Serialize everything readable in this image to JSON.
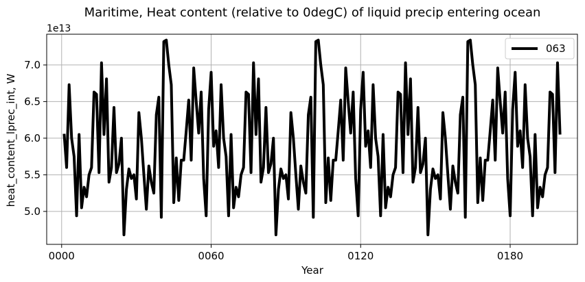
{
  "chart_data": {
    "type": "line",
    "title": "Maritime, Heat content (relative to 0degC) of liquid precip entering ocean",
    "xlabel": "Year",
    "ylabel": "heat_content_lprec_int, W",
    "y_multiplier_label": "1e13",
    "y_multiplier": 10000000000000.0,
    "xlim": [
      -6,
      207
    ],
    "ylim": [
      4.55,
      7.42
    ],
    "x_ticks": [
      0,
      60,
      120,
      180
    ],
    "x_tick_labels": [
      "0000",
      "0060",
      "0120",
      "0180"
    ],
    "y_ticks": [
      5.0,
      5.5,
      6.0,
      6.5,
      7.0
    ],
    "y_tick_labels": [
      "5.0",
      "5.5",
      "6.0",
      "6.5",
      "7.0"
    ],
    "grid": true,
    "legend_position": "top-right",
    "line_color": "#000000",
    "series": [
      {
        "name": "063",
        "x": [
          1,
          2,
          3,
          4,
          5,
          6,
          7,
          8,
          9,
          10,
          11,
          12,
          13,
          14,
          15,
          16,
          17,
          18,
          19,
          20,
          21,
          22,
          23,
          24,
          25,
          26,
          27,
          28,
          29,
          30,
          31,
          32,
          33,
          34,
          35,
          36,
          37,
          38,
          39,
          40,
          41,
          42,
          43,
          44,
          45,
          46,
          47,
          48,
          49,
          50,
          51,
          52,
          53,
          54,
          55,
          56,
          57,
          58,
          59,
          60,
          61,
          62,
          63,
          64,
          65,
          66,
          67,
          68,
          69,
          70,
          71,
          72,
          73,
          74,
          75,
          76,
          77,
          78,
          79,
          80,
          81,
          82,
          83,
          84,
          85,
          86,
          87,
          88,
          89,
          90,
          91,
          92,
          93,
          94,
          95,
          96,
          97,
          98,
          99,
          100,
          101,
          102,
          103,
          104,
          105,
          106,
          107,
          108,
          109,
          110,
          111,
          112,
          113,
          114,
          115,
          116,
          117,
          118,
          119,
          120,
          121,
          122,
          123,
          124,
          125,
          126,
          127,
          128,
          129,
          130,
          131,
          132,
          133,
          134,
          135,
          136,
          137,
          138,
          139,
          140,
          141,
          142,
          143,
          144,
          145,
          146,
          147,
          148,
          149,
          150,
          151,
          152,
          153,
          154,
          155,
          156,
          157,
          158,
          159,
          160,
          161,
          162,
          163,
          164,
          165,
          166,
          167,
          168,
          169,
          170,
          171,
          172,
          173,
          174,
          175,
          176,
          177,
          178,
          179,
          180,
          181,
          182,
          183,
          184,
          185,
          186,
          187,
          188,
          189,
          190,
          191,
          192,
          193,
          194,
          195,
          196,
          197,
          198,
          199,
          200
        ],
        "y": [
          6.06,
          5.6,
          6.73,
          6.0,
          5.75,
          4.94,
          6.05,
          5.05,
          5.33,
          5.2,
          5.5,
          5.6,
          6.63,
          6.6,
          5.53,
          7.03,
          6.05,
          6.81,
          5.4,
          5.6,
          6.42,
          5.53,
          5.65,
          6.0,
          4.68,
          5.3,
          5.58,
          5.45,
          5.5,
          5.17,
          6.35,
          6.0,
          5.5,
          5.03,
          5.62,
          5.4,
          5.25,
          6.32,
          6.56,
          4.92,
          7.32,
          7.34,
          7.0,
          6.73,
          5.12,
          5.73,
          5.15,
          5.7,
          5.7,
          6.1,
          6.52,
          5.7,
          6.96,
          6.5,
          6.07,
          6.63,
          5.45,
          4.94,
          6.39,
          6.9,
          5.89,
          6.1,
          5.6,
          6.73,
          6.0,
          5.75,
          4.94,
          6.05,
          5.05,
          5.33,
          5.2,
          5.5,
          5.6,
          6.63,
          6.6,
          5.53,
          7.03,
          6.05,
          6.81,
          5.4,
          5.6,
          6.42,
          5.53,
          5.65,
          6.0,
          4.68,
          5.3,
          5.58,
          5.45,
          5.5,
          5.17,
          6.35,
          6.0,
          5.5,
          5.03,
          5.62,
          5.4,
          5.25,
          6.32,
          6.56,
          4.92,
          7.32,
          7.34,
          7.0,
          6.73,
          5.12,
          5.73,
          5.15,
          5.7,
          5.7,
          6.1,
          6.52,
          5.7,
          6.96,
          6.5,
          6.07,
          6.63,
          5.45,
          4.94,
          6.39,
          6.9,
          5.89,
          6.1,
          5.6,
          6.73,
          6.0,
          5.75,
          4.94,
          6.05,
          5.05,
          5.33,
          5.2,
          5.5,
          5.6,
          6.63,
          6.6,
          5.53,
          7.03,
          6.05,
          6.81,
          5.4,
          5.6,
          6.42,
          5.53,
          5.65,
          6.0,
          4.68,
          5.3,
          5.58,
          5.45,
          5.5,
          5.17,
          6.35,
          6.0,
          5.5,
          5.03,
          5.62,
          5.4,
          5.25,
          6.32,
          6.56,
          4.92,
          7.32,
          7.34,
          7.0,
          6.73,
          5.12,
          5.73,
          5.15,
          5.7,
          5.7,
          6.1,
          6.52,
          5.7,
          6.96,
          6.5,
          6.07,
          6.63,
          5.45,
          4.94,
          6.39,
          6.9,
          5.89,
          6.1,
          5.6,
          6.73,
          6.0,
          5.75,
          4.94,
          6.05,
          5.05,
          5.33,
          5.2,
          5.5,
          5.6,
          6.63,
          6.6,
          5.53,
          7.03,
          6.05
        ]
      }
    ]
  }
}
